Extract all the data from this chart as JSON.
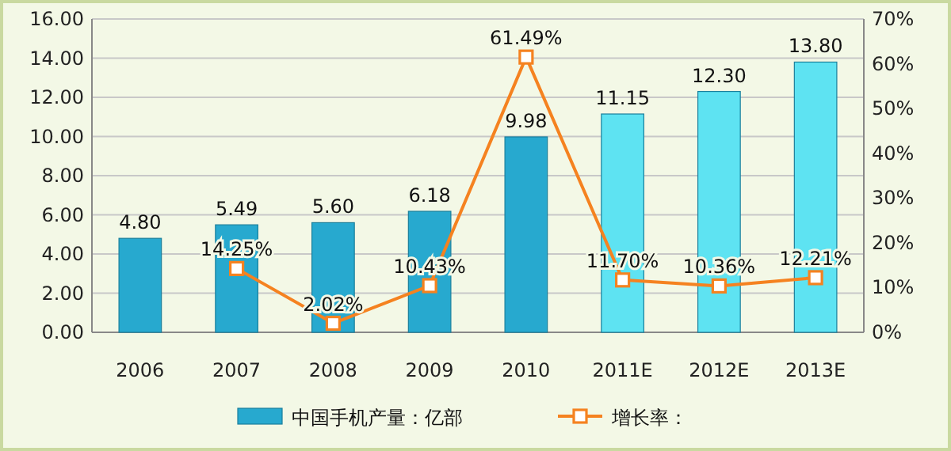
{
  "chart_data": {
    "type": "bar",
    "categories": [
      "2006",
      "2007",
      "2008",
      "2009",
      "2010",
      "2011E",
      "2012E",
      "2013E"
    ],
    "series": [
      {
        "name": "中国手机产量：亿部",
        "color": "#27a9cf",
        "colors": [
          "#27a9cf",
          "#27a9cf",
          "#27a9cf",
          "#27a9cf",
          "#27a9cf",
          "#5ee3f2",
          "#5ee3f2",
          "#5ee3f2"
        ],
        "values": [
          4.8,
          5.49,
          5.6,
          6.18,
          9.98,
          11.15,
          12.3,
          13.8
        ],
        "value_labels": [
          "4.80",
          "5.49",
          "5.60",
          "6.18",
          "9.98",
          "11.15",
          "12.30",
          "13.80"
        ]
      },
      {
        "name": "增长率：",
        "type": "line",
        "axis": "y2",
        "color": "#f58220",
        "marker": "square",
        "values": [
          null,
          14.25,
          2.02,
          10.43,
          61.49,
          11.7,
          10.36,
          12.21
        ],
        "value_labels": [
          null,
          "14.25%",
          "2.02%",
          "10.43%",
          "61.49%",
          "11.70%",
          "10.36%",
          "12.21%"
        ]
      }
    ],
    "ylim": [
      0,
      16
    ],
    "yticks": [
      {
        "value": 0,
        "label": "0.00"
      },
      {
        "value": 2,
        "label": "2.00"
      },
      {
        "value": 4,
        "label": "4.00"
      },
      {
        "value": 6,
        "label": "6.00"
      },
      {
        "value": 8,
        "label": "8.00"
      },
      {
        "value": 10,
        "label": "10.00"
      },
      {
        "value": 12,
        "label": "12.00"
      },
      {
        "value": 14,
        "label": "14.00"
      },
      {
        "value": 16,
        "label": "16.00"
      }
    ],
    "y2lim": [
      0,
      70
    ],
    "y2ticks": [
      {
        "value": 0,
        "label": "0%"
      },
      {
        "value": 10,
        "label": "10%"
      },
      {
        "value": 20,
        "label": "20%"
      },
      {
        "value": 30,
        "label": "30%"
      },
      {
        "value": 40,
        "label": "40%"
      },
      {
        "value": 50,
        "label": "50%"
      },
      {
        "value": 60,
        "label": "60%"
      },
      {
        "value": 70,
        "label": "70%"
      }
    ],
    "grid": "y",
    "legend": "bottom"
  }
}
